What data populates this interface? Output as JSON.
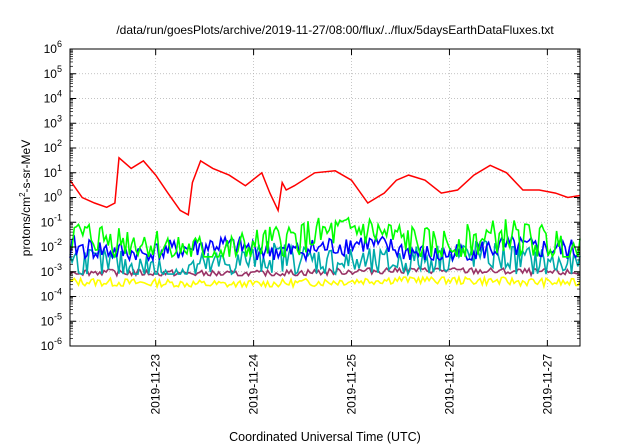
{
  "chart_data": {
    "type": "line",
    "title": "/data/run/goesPlots/archive/2019-11-27/08:00/flux/../flux/5daysEarthDataFluxes.txt",
    "xlabel": "Coordinated Universal Time (UTC)",
    "ylabel": {
      "pre": "protons/cm",
      "sup": "2",
      "post": "-s-sr-MeV"
    },
    "log_y": true,
    "ylim": [
      1e-06,
      1000000.0
    ],
    "y_ticks": [
      {
        "v": 1e-06,
        "base": "10",
        "exp": "-6"
      },
      {
        "v": 1e-05,
        "base": "10",
        "exp": "-5"
      },
      {
        "v": 0.0001,
        "base": "10",
        "exp": "-4"
      },
      {
        "v": 0.001,
        "base": "10",
        "exp": "-3"
      },
      {
        "v": 0.01,
        "base": "10",
        "exp": "-2"
      },
      {
        "v": 0.1,
        "base": "10",
        "exp": "-1"
      },
      {
        "v": 1,
        "base": "10",
        "exp": "0"
      },
      {
        "v": 10,
        "base": "10",
        "exp": "1"
      },
      {
        "v": 100,
        "base": "10",
        "exp": "2"
      },
      {
        "v": 1000.0,
        "base": "10",
        "exp": "3"
      },
      {
        "v": 10000.0,
        "base": "10",
        "exp": "4"
      },
      {
        "v": 100000.0,
        "base": "10",
        "exp": "5"
      },
      {
        "v": 1000000.0,
        "base": "10",
        "exp": "6"
      }
    ],
    "x_start": "2019-11-22 03:00",
    "x_end": "2019-11-27 08:00",
    "x_ticks": [
      "2019-11-23",
      "2019-11-24",
      "2019-11-25",
      "2019-11-26",
      "2019-11-27"
    ],
    "grid": true,
    "series": [
      {
        "color": "#ff0000",
        "x": [
          "2019-11-22 03:00",
          "2019-11-22 06:00",
          "2019-11-22 09:00",
          "2019-11-22 12:00",
          "2019-11-22 14:00",
          "2019-11-22 15:00",
          "2019-11-22 18:00",
          "2019-11-22 21:00",
          "2019-11-23 00:00",
          "2019-11-23 03:00",
          "2019-11-23 06:00",
          "2019-11-23 08:00",
          "2019-11-23 09:00",
          "2019-11-23 11:00",
          "2019-11-23 14:00",
          "2019-11-23 18:00",
          "2019-11-23 22:00",
          "2019-11-24 02:00",
          "2019-11-24 04:00",
          "2019-11-24 06:00",
          "2019-11-24 07:00",
          "2019-11-24 08:00",
          "2019-11-24 10:00",
          "2019-11-24 15:00",
          "2019-11-24 20:00",
          "2019-11-25 00:00",
          "2019-11-25 04:00",
          "2019-11-25 08:00",
          "2019-11-25 11:00",
          "2019-11-25 14:00",
          "2019-11-25 18:00",
          "2019-11-25 22:00",
          "2019-11-26 02:00",
          "2019-11-26 06:00",
          "2019-11-26 10:00",
          "2019-11-26 14:00",
          "2019-11-26 18:00",
          "2019-11-26 22:00",
          "2019-11-27 02:00",
          "2019-11-27 05:00",
          "2019-11-27 08:00"
        ],
        "values": [
          5,
          1,
          0.6,
          0.4,
          0.6,
          40,
          15,
          30,
          8,
          1.5,
          0.3,
          0.2,
          4,
          30,
          15,
          8,
          3,
          10,
          1.5,
          0.3,
          4,
          2,
          3,
          10,
          12,
          5,
          0.6,
          1.5,
          5,
          8,
          5,
          1.5,
          2,
          8,
          20,
          10,
          2,
          2,
          1.5,
          1,
          1.2
        ]
      },
      {
        "color": "#00ff00",
        "values": [
          0.03,
          0.015,
          0.005,
          0.02,
          0.05,
          0.01,
          0.03,
          0.008
        ],
        "min": 0.004,
        "max": 0.15
      },
      {
        "color": "#0000ff",
        "values": [
          0.01,
          0.005,
          0.012,
          0.006,
          0.015,
          0.004,
          0.01,
          0.007
        ],
        "min": 0.003,
        "max": 0.03
      },
      {
        "color": "#00aaaa",
        "values": [
          0.003,
          0.001,
          0.004,
          0.002,
          0.005,
          0.0015
        ],
        "min": 0.0008,
        "max": 0.02
      },
      {
        "color": "#993366",
        "values": [
          0.001,
          0.0008,
          0.0012,
          0.0009
        ],
        "min": 0.0007,
        "max": 0.0014
      },
      {
        "color": "#ffff00",
        "values": [
          0.0004,
          0.0003,
          0.0005,
          0.00035
        ],
        "min": 0.00025,
        "max": 0.0006
      }
    ]
  }
}
